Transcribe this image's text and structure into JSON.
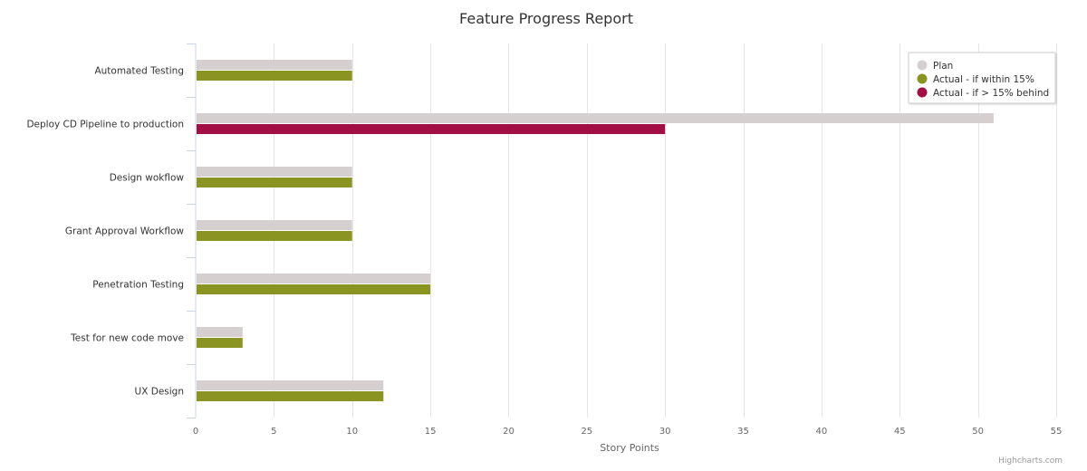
{
  "chart_data": {
    "type": "bar",
    "orientation": "horizontal",
    "title": "Feature Progress Report",
    "xlabel": "Story Points",
    "ylabel": "",
    "xlim": [
      0,
      55
    ],
    "x_ticks": [
      0,
      5,
      10,
      15,
      20,
      25,
      30,
      35,
      40,
      45,
      50,
      55
    ],
    "grid": true,
    "legend_position": "top-right",
    "categories": [
      "Automated Testing",
      "Deploy CD Pipeline to production",
      "Design wokflow",
      "Grant Approval Workflow",
      "Penetration Testing",
      "Test for new code move",
      "UX Design"
    ],
    "series": [
      {
        "name": "Plan",
        "color": "#d5cfd0",
        "values": [
          10,
          51,
          10,
          10,
          15,
          3,
          12
        ]
      },
      {
        "name": "Actual",
        "values": [
          10,
          30,
          10,
          10,
          15,
          3,
          12
        ],
        "point_colors": [
          "#8a9420",
          "#a30e44",
          "#8a9420",
          "#8a9420",
          "#8a9420",
          "#8a9420",
          "#8a9420"
        ]
      }
    ],
    "legend": [
      {
        "label": "Plan",
        "color": "#d5cfd0"
      },
      {
        "label": "Actual - if within 15%",
        "color": "#8a9420"
      },
      {
        "label": "Actual - if > 15% behind",
        "color": "#a30e44"
      }
    ]
  },
  "credits": "Highcharts.com",
  "colors": {
    "text": "#333333",
    "axis_label": "#666666",
    "grid": "#e6e6e6",
    "axis_line": "#ccd6eb"
  }
}
